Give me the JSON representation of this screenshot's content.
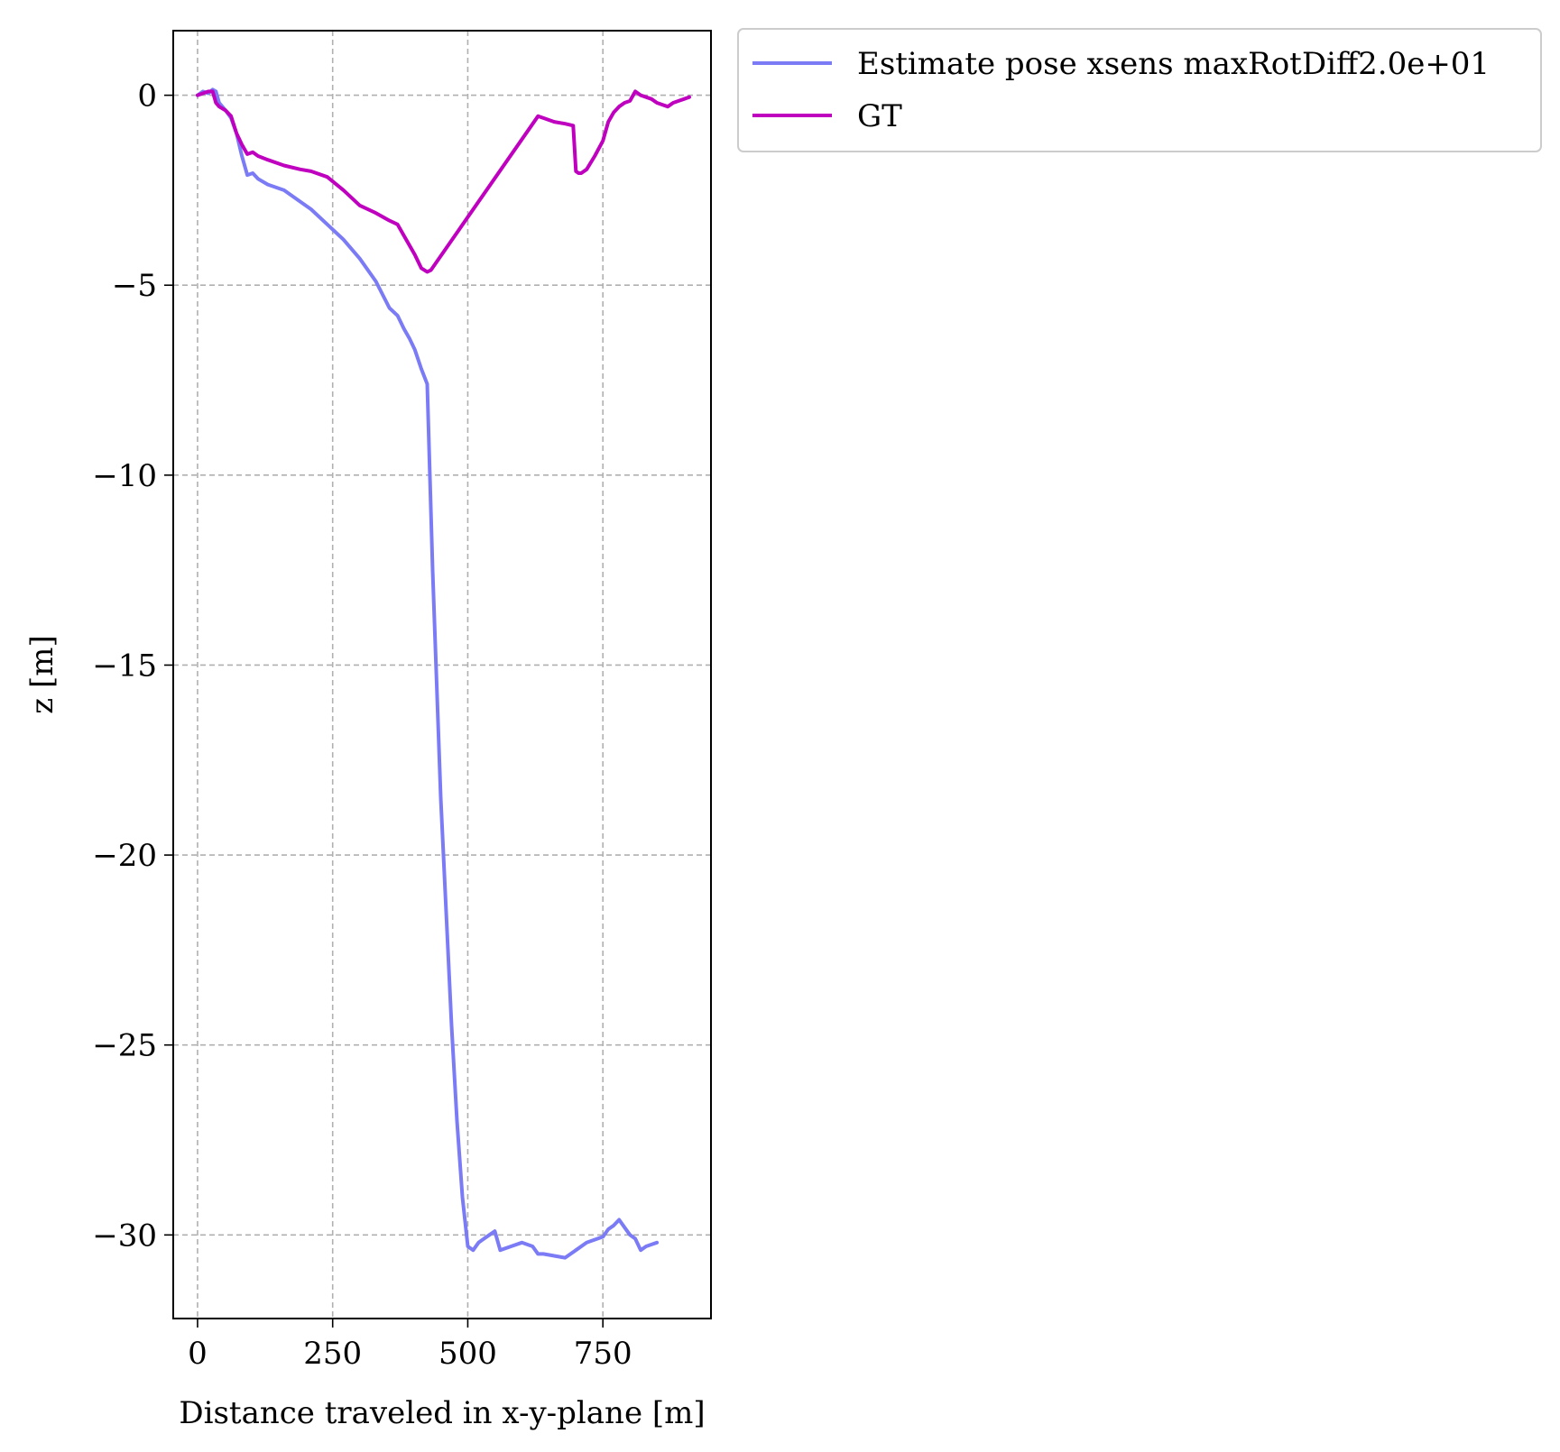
{
  "chart_data": {
    "type": "line",
    "title": "",
    "xlabel": "Distance traveled in x-y-plane [m]",
    "ylabel": "z [m]",
    "xlim": [
      -45,
      950
    ],
    "ylim": [
      -32.2,
      1.7
    ],
    "xticks": [
      0,
      250,
      500,
      750
    ],
    "xtick_labels": [
      "0",
      "250",
      "500",
      "750"
    ],
    "yticks": [
      0,
      -5,
      -10,
      -15,
      -20,
      -25,
      -30
    ],
    "ytick_labels": [
      "0",
      "−5",
      "−10",
      "−15",
      "−20",
      "−25",
      "−30"
    ],
    "grid": true,
    "legend_position": "outside-upper-right",
    "series": [
      {
        "name": "Estimate pose xsens maxRotDiff2.0e+01",
        "color": "#7b7bf6",
        "x": [
          0,
          10,
          20,
          28,
          34,
          40,
          52,
          62,
          72,
          82,
          92,
          102,
          112,
          130,
          160,
          190,
          210,
          240,
          270,
          300,
          330,
          355,
          370,
          382,
          392,
          402,
          414,
          425,
          435,
          445,
          450,
          460,
          470,
          480,
          490,
          500,
          510,
          520,
          530,
          540,
          550,
          560,
          580,
          600,
          620,
          630,
          640,
          660,
          680,
          700,
          720,
          740,
          750,
          760,
          770,
          780,
          790,
          800,
          810,
          820,
          830,
          840,
          850
        ],
        "y": [
          0,
          0.1,
          0.05,
          0.15,
          0.1,
          -0.2,
          -0.4,
          -0.6,
          -1.0,
          -1.6,
          -2.1,
          -2.05,
          -2.2,
          -2.35,
          -2.5,
          -2.8,
          -3.0,
          -3.4,
          -3.8,
          -4.3,
          -4.9,
          -5.6,
          -5.8,
          -6.15,
          -6.4,
          -6.7,
          -7.2,
          -7.6,
          -12.5,
          -16.5,
          -18.5,
          -21.5,
          -24.5,
          -27.0,
          -29.0,
          -30.3,
          -30.4,
          -30.2,
          -30.1,
          -30.0,
          -29.9,
          -30.4,
          -30.3,
          -30.2,
          -30.3,
          -30.5,
          -30.5,
          -30.55,
          -30.6,
          -30.4,
          -30.2,
          -30.1,
          -30.05,
          -29.85,
          -29.75,
          -29.6,
          -29.8,
          -30.0,
          -30.1,
          -30.4,
          -30.3,
          -30.25,
          -30.2
        ]
      },
      {
        "name": "GT",
        "color": "#bf00bf",
        "x": [
          0,
          10,
          20,
          28,
          34,
          40,
          52,
          62,
          72,
          82,
          92,
          102,
          112,
          130,
          160,
          190,
          210,
          240,
          270,
          300,
          330,
          355,
          370,
          382,
          392,
          402,
          414,
          425,
          432,
          630,
          640,
          660,
          680,
          695,
          700,
          705,
          710,
          720,
          735,
          750,
          760,
          770,
          780,
          790,
          800,
          810,
          820,
          830,
          840,
          850,
          860,
          870,
          880,
          890,
          900,
          910
        ],
        "y": [
          0,
          0.05,
          0.1,
          0.1,
          -0.2,
          -0.3,
          -0.4,
          -0.55,
          -1.0,
          -1.3,
          -1.55,
          -1.5,
          -1.6,
          -1.7,
          -1.85,
          -1.95,
          -2.0,
          -2.15,
          -2.5,
          -2.9,
          -3.1,
          -3.3,
          -3.4,
          -3.7,
          -3.95,
          -4.2,
          -4.55,
          -4.65,
          -4.6,
          -0.55,
          -0.6,
          -0.7,
          -0.75,
          -0.8,
          -2.0,
          -2.05,
          -2.05,
          -1.95,
          -1.6,
          -1.2,
          -0.7,
          -0.45,
          -0.3,
          -0.2,
          -0.15,
          0.1,
          0.0,
          -0.05,
          -0.1,
          -0.2,
          -0.25,
          -0.3,
          -0.2,
          -0.15,
          -0.1,
          -0.05
        ]
      }
    ]
  }
}
